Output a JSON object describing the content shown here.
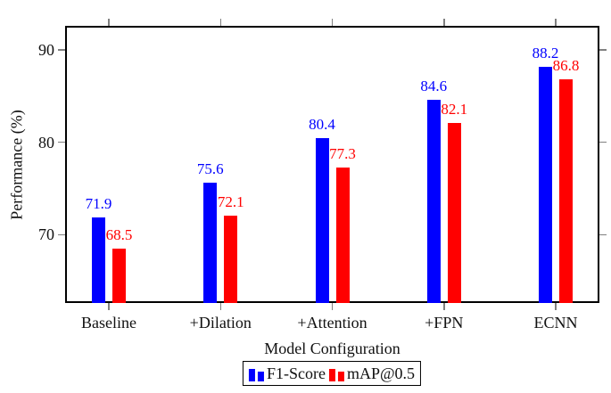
{
  "figure": {
    "ylabel": "Performance (%)",
    "xlabel": "Model Configuration"
  },
  "chart_data": {
    "type": "bar",
    "title": "",
    "xlabel": "Model Configuration",
    "ylabel": "Performance (%)",
    "categories": [
      "Baseline",
      "+Dilation",
      "+Attention",
      "+FPN",
      "ECNN"
    ],
    "series": [
      {
        "name": "F1-Score",
        "color": "#0000ff",
        "values": [
          71.9,
          75.6,
          80.4,
          84.6,
          88.2
        ]
      },
      {
        "name": "mAP@0.5",
        "color": "#ff0000",
        "values": [
          68.5,
          72.1,
          77.3,
          82.1,
          86.8
        ]
      }
    ],
    "value_labels_shown": true,
    "yticks": [
      70,
      80,
      90
    ],
    "ylim": [
      62.6,
      92.6
    ],
    "grid": false,
    "tick_style": "outward-all-sides",
    "legend_position": "below-x-axis",
    "colors": {
      "axis": "#000000",
      "tick": "#808080",
      "background": "#ffffff"
    }
  }
}
